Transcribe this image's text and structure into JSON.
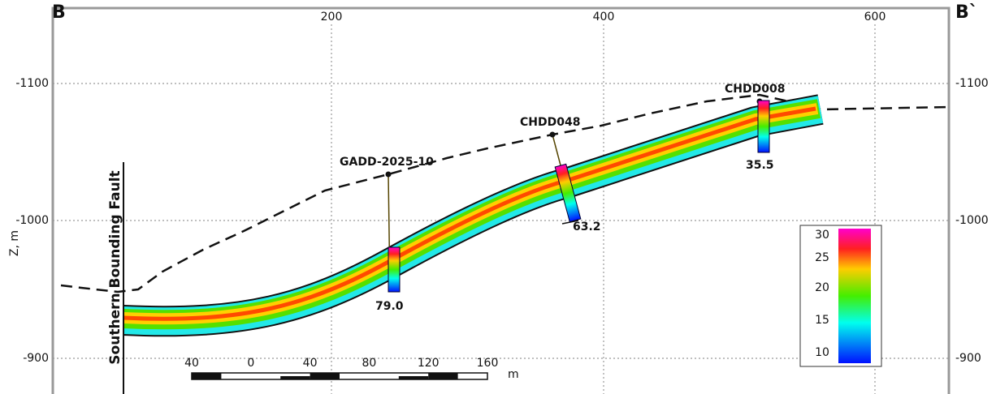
{
  "header": {
    "left_label": "B",
    "right_label": "B`"
  },
  "axes": {
    "x_ticks": [
      "200",
      "400",
      "600"
    ],
    "y_ticks": [
      "-1100",
      "-1000",
      "-900"
    ],
    "y_title": "Z, m"
  },
  "fault_label": "Southern Bounding Fault",
  "drill_holes": [
    {
      "name": "GADD-2025-10",
      "value": "79.0"
    },
    {
      "name": "CHDD048",
      "value": "63.2"
    },
    {
      "name": "CHDD008",
      "value": "35.5"
    }
  ],
  "legend": {
    "ticks": [
      "30",
      "25",
      "20",
      "15",
      "10"
    ]
  },
  "scale_bar": {
    "ticks": [
      "40",
      "0",
      "40",
      "80",
      "120",
      "160"
    ],
    "unit": "m"
  }
}
